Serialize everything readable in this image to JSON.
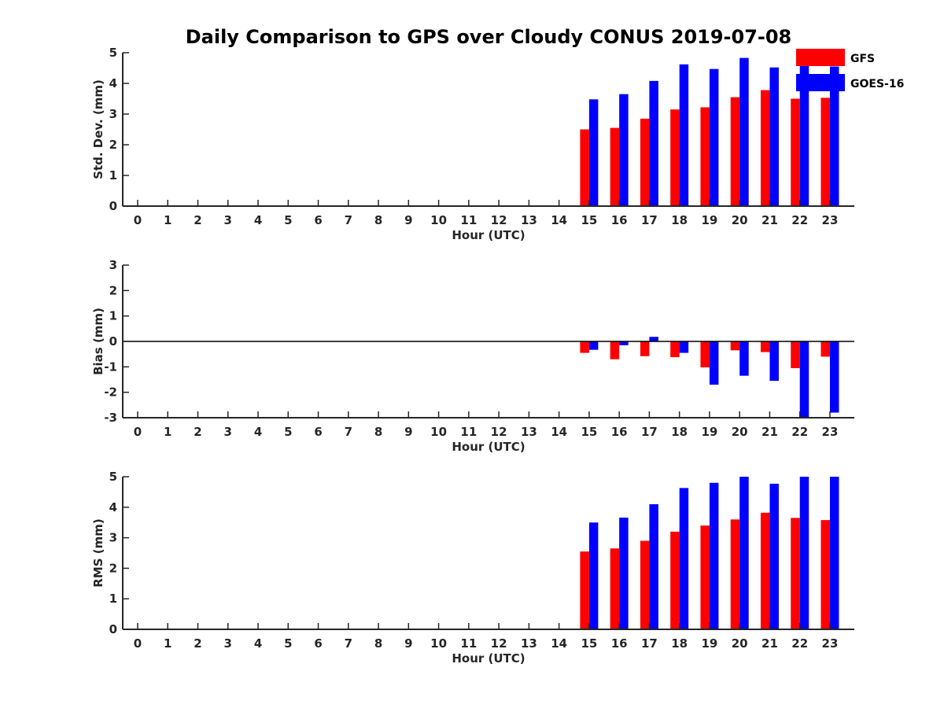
{
  "title": "Daily Comparison to GPS over Cloudy CONUS 2019-07-08",
  "colors": {
    "GFS": "#ff0000",
    "GOES-16": "#0000ff",
    "axis": "#262626"
  },
  "chart_data": [
    {
      "type": "bar",
      "title": "",
      "xlabel": "Hour (UTC)",
      "ylabel": "Std. Dev. (mm)",
      "ylim": [
        0,
        5
      ],
      "yticks": [
        "0",
        "1",
        "2",
        "3",
        "4",
        "5"
      ],
      "categories": [
        "0",
        "1",
        "2",
        "3",
        "4",
        "5",
        "6",
        "7",
        "8",
        "9",
        "10",
        "11",
        "12",
        "13",
        "14",
        "15",
        "16",
        "17",
        "18",
        "19",
        "20",
        "21",
        "22",
        "23"
      ],
      "legend": {
        "placement": "top-right",
        "entries": [
          "GFS",
          "GOES-16"
        ]
      },
      "series": [
        {
          "name": "GFS",
          "values": [
            null,
            null,
            null,
            null,
            null,
            null,
            null,
            null,
            null,
            null,
            null,
            null,
            null,
            null,
            null,
            2.5,
            2.55,
            2.85,
            3.15,
            3.22,
            3.55,
            3.78,
            3.5,
            3.53
          ]
        },
        {
          "name": "GOES-16",
          "values": [
            null,
            null,
            null,
            null,
            null,
            null,
            null,
            null,
            null,
            null,
            null,
            null,
            null,
            null,
            null,
            3.48,
            3.65,
            4.08,
            4.62,
            4.47,
            4.83,
            4.52,
            4.58,
            4.55
          ]
        }
      ]
    },
    {
      "type": "bar",
      "title": "",
      "xlabel": "Hour (UTC)",
      "ylabel": "Bias (mm)",
      "ylim": [
        -3,
        3
      ],
      "yticks": [
        "-3",
        "-2",
        "-1",
        "0",
        "1",
        "2",
        "3"
      ],
      "zero_line": true,
      "categories": [
        "0",
        "1",
        "2",
        "3",
        "4",
        "5",
        "6",
        "7",
        "8",
        "9",
        "10",
        "11",
        "12",
        "13",
        "14",
        "15",
        "16",
        "17",
        "18",
        "19",
        "20",
        "21",
        "22",
        "23"
      ],
      "series": [
        {
          "name": "GFS",
          "values": [
            null,
            null,
            null,
            null,
            null,
            null,
            null,
            null,
            null,
            null,
            null,
            null,
            null,
            null,
            null,
            -0.45,
            -0.7,
            -0.58,
            -0.62,
            -1.02,
            -0.35,
            -0.42,
            -1.05,
            -0.6
          ]
        },
        {
          "name": "GOES-16",
          "values": [
            null,
            null,
            null,
            null,
            null,
            null,
            null,
            null,
            null,
            null,
            null,
            null,
            null,
            null,
            null,
            -0.33,
            -0.15,
            0.18,
            -0.45,
            -1.7,
            -1.35,
            -1.55,
            -3.0,
            -2.8
          ]
        }
      ]
    },
    {
      "type": "bar",
      "title": "",
      "xlabel": "Hour (UTC)",
      "ylabel": "RMS (mm)",
      "ylim": [
        0,
        5
      ],
      "yticks": [
        "0",
        "1",
        "2",
        "3",
        "4",
        "5"
      ],
      "categories": [
        "0",
        "1",
        "2",
        "3",
        "4",
        "5",
        "6",
        "7",
        "8",
        "9",
        "10",
        "11",
        "12",
        "13",
        "14",
        "15",
        "16",
        "17",
        "18",
        "19",
        "20",
        "21",
        "22",
        "23"
      ],
      "series": [
        {
          "name": "GFS",
          "values": [
            null,
            null,
            null,
            null,
            null,
            null,
            null,
            null,
            null,
            null,
            null,
            null,
            null,
            null,
            null,
            2.55,
            2.65,
            2.9,
            3.2,
            3.4,
            3.6,
            3.82,
            3.65,
            3.58
          ]
        },
        {
          "name": "GOES-16",
          "values": [
            null,
            null,
            null,
            null,
            null,
            null,
            null,
            null,
            null,
            null,
            null,
            null,
            null,
            null,
            null,
            3.5,
            3.66,
            4.1,
            4.63,
            4.8,
            5.0,
            4.77,
            5.0,
            5.0
          ]
        }
      ]
    }
  ]
}
